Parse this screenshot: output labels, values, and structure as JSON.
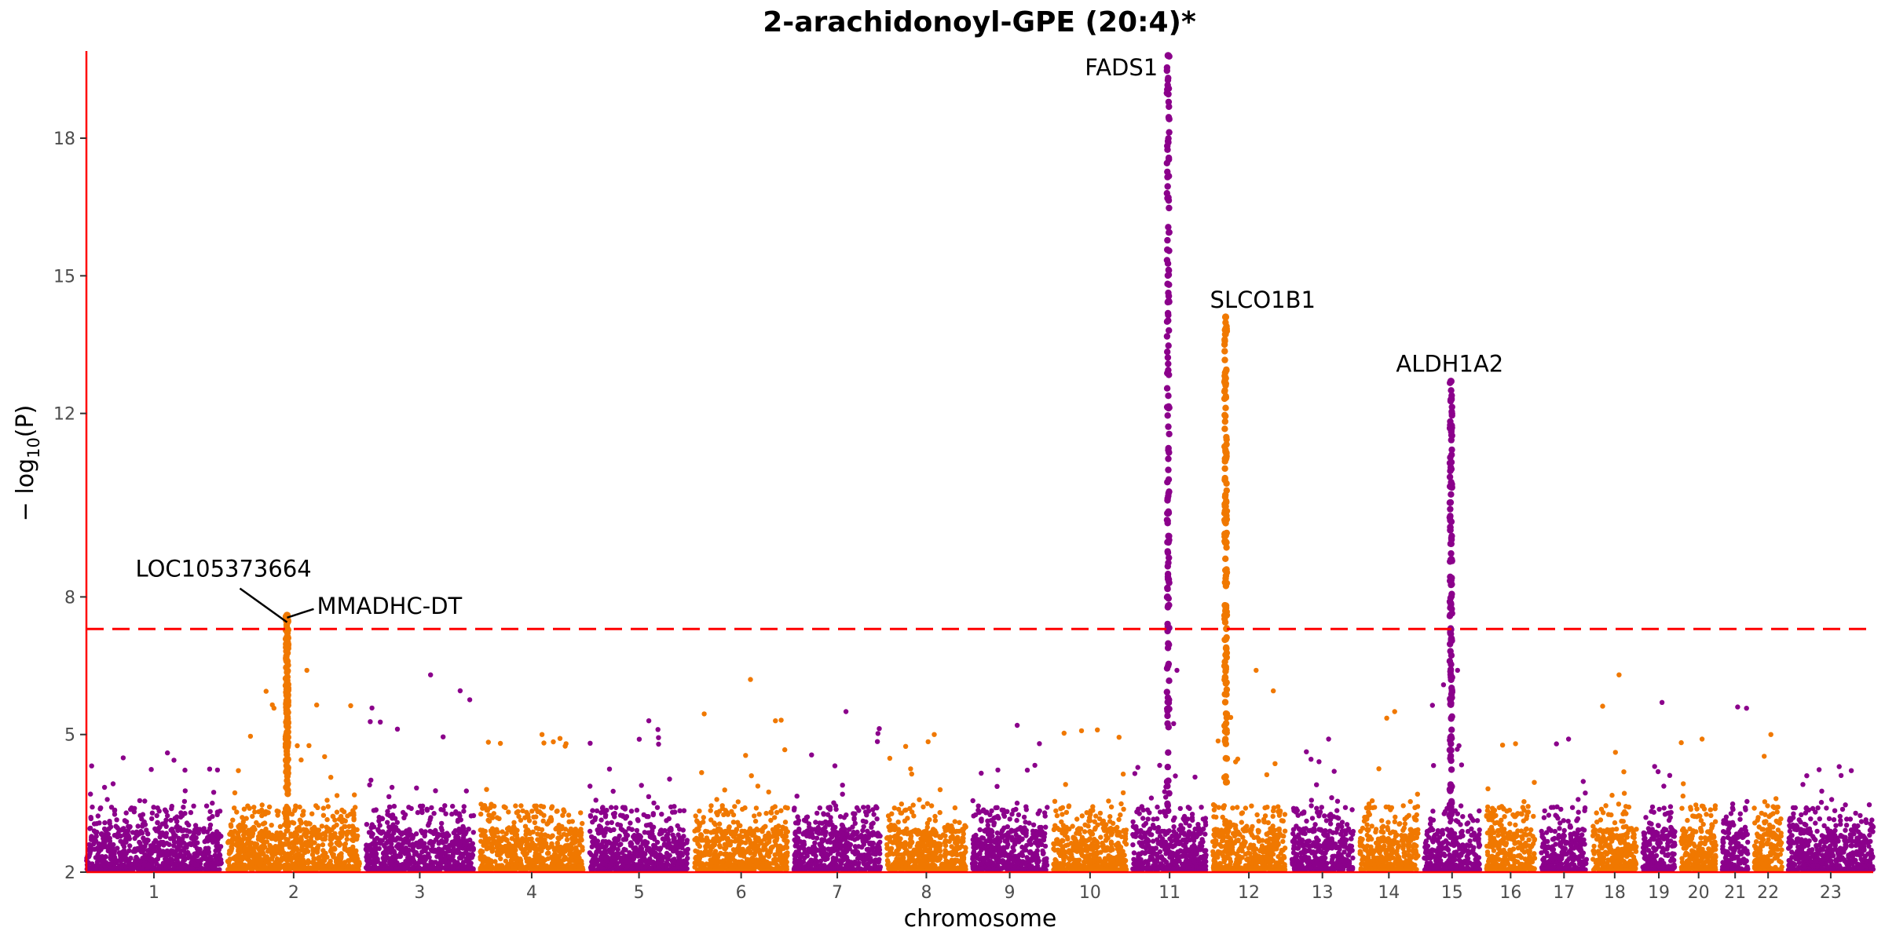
{
  "chart_data": {
    "type": "scatter",
    "subtype": "manhattan",
    "title": "2-arachidonoyl-GPE (20:4)*",
    "xlabel": "chromosome",
    "ylabel_prefix": "− log",
    "ylabel_sub": "10",
    "ylabel_suffix": "(P)",
    "ylim": [
      2,
      19.9
    ],
    "yticks": [
      2,
      5,
      8,
      12,
      15,
      18
    ],
    "threshold": 7.3,
    "threshold_color": "#ff0000",
    "colors": [
      "#8b008b",
      "#f07800"
    ],
    "axis_color": "#ff0000",
    "chromosomes": [
      {
        "label": "1",
        "size": 248,
        "max": 4.6
      },
      {
        "label": "2",
        "size": 242,
        "max": 7.6
      },
      {
        "label": "3",
        "size": 198,
        "max": 6.3
      },
      {
        "label": "4",
        "size": 190,
        "max": 5.0
      },
      {
        "label": "5",
        "size": 181,
        "max": 5.3
      },
      {
        "label": "6",
        "size": 171,
        "max": 6.2
      },
      {
        "label": "7",
        "size": 159,
        "max": 5.5
      },
      {
        "label": "8",
        "size": 145,
        "max": 5.0
      },
      {
        "label": "9",
        "size": 138,
        "max": 5.2
      },
      {
        "label": "10",
        "size": 134,
        "max": 5.1
      },
      {
        "label": "11",
        "size": 135,
        "max": 19.8
      },
      {
        "label": "12",
        "size": 133,
        "max": 14.1
      },
      {
        "label": "13",
        "size": 114,
        "max": 4.9
      },
      {
        "label": "14",
        "size": 107,
        "max": 5.5
      },
      {
        "label": "15",
        "size": 102,
        "max": 12.7
      },
      {
        "label": "16",
        "size": 90,
        "max": 4.8
      },
      {
        "label": "17",
        "size": 83,
        "max": 4.9
      },
      {
        "label": "18",
        "size": 80,
        "max": 6.3
      },
      {
        "label": "19",
        "size": 59,
        "max": 5.7
      },
      {
        "label": "20",
        "size": 64,
        "max": 4.9
      },
      {
        "label": "21",
        "size": 47,
        "max": 5.6
      },
      {
        "label": "22",
        "size": 51,
        "max": 5.0
      },
      {
        "label": "23",
        "size": 156,
        "max": 4.3
      }
    ],
    "peaks": [
      {
        "chrom": "2",
        "pos": 0.45,
        "max": 7.6
      },
      {
        "chrom": "11",
        "pos": 0.48,
        "max": 19.8
      },
      {
        "chrom": "12",
        "pos": 0.18,
        "max": 14.1
      },
      {
        "chrom": "15",
        "pos": 0.48,
        "max": 12.7
      }
    ],
    "annotations": [
      {
        "label": "LOC105373664",
        "chrom": "2",
        "pos": 0.45,
        "y": 7.5
      },
      {
        "label": "MMADHC-DT",
        "chrom": "2",
        "pos": 0.45,
        "y": 7.6
      },
      {
        "label": "FADS1",
        "chrom": "11",
        "pos": 0.48,
        "y": 19.8
      },
      {
        "label": "SLCO1B1",
        "chrom": "12",
        "pos": 0.18,
        "y": 14.1
      },
      {
        "label": "ALDH1A2",
        "chrom": "15",
        "pos": 0.48,
        "y": 12.7
      }
    ]
  }
}
